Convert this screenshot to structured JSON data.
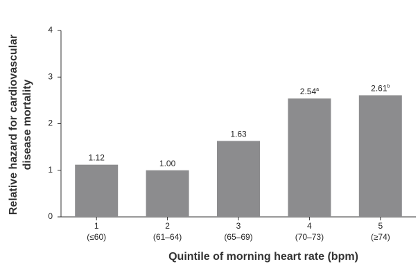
{
  "chart_data": {
    "type": "bar",
    "ylabel": [
      "Relative hazard for cardiovascular",
      "disease mortality"
    ],
    "xlabel": "Quintile of morning heart rate (bpm)",
    "categories": [
      [
        "1",
        "(≤60)"
      ],
      [
        "2",
        "(61–64)"
      ],
      [
        "3",
        "(65–69)"
      ],
      [
        "4",
        "(70–73)"
      ],
      [
        "5",
        "(≥74)"
      ]
    ],
    "values": [
      1.12,
      1.0,
      1.63,
      2.54,
      2.61
    ],
    "value_labels": [
      "1.12",
      "1.00",
      "1.63",
      "2.54",
      "2.61"
    ],
    "value_label_notes": [
      null,
      null,
      null,
      "a",
      "b"
    ],
    "color": "#8c8c8e",
    "ylim": [
      0,
      4
    ],
    "yticks": [
      0,
      1,
      2,
      3,
      4
    ],
    "grid": false
  }
}
